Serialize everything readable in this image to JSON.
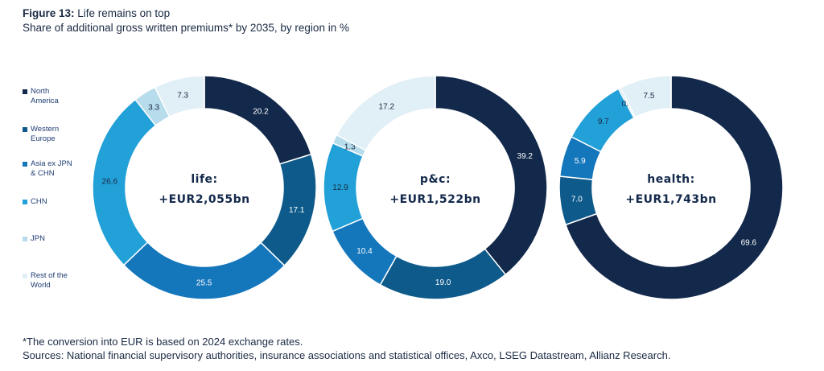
{
  "header": {
    "figure_label": "Figure 13:",
    "title": "Life remains on top",
    "subtitle": "Share of additional gross written premiums* by 2035, by region in %"
  },
  "colors": {
    "North America": "#13294b",
    "Western Europe": "#0e5a8a",
    "Asia ex JPN & CHN": "#1476bb",
    "CHN": "#22a0d8",
    "JPN": "#b7dceb",
    "Rest of the World": "#e1eff6"
  },
  "legend": [
    {
      "label": "North\nAmerica",
      "key": "North America"
    },
    {
      "label": "Western\nEurope",
      "key": "Western Europe"
    },
    {
      "label": "Asia ex JPN\n& CHN",
      "key": "Asia ex JPN & CHN"
    },
    {
      "label": "CHN",
      "key": "CHN"
    },
    {
      "label": "JPN",
      "key": "JPN"
    },
    {
      "label": "Rest of the\nWorld",
      "key": "Rest of the World"
    }
  ],
  "chart_data": [
    {
      "type": "pie",
      "subtype": "donut",
      "center_label": "life:",
      "center_value": "+EUR2,055bn",
      "categories": [
        "North America",
        "Western Europe",
        "Asia ex JPN & CHN",
        "CHN",
        "JPN",
        "Rest of the World"
      ],
      "values": [
        20.2,
        17.1,
        25.5,
        26.6,
        3.3,
        7.3
      ],
      "labels": [
        "20.2",
        "17.1",
        "25.5",
        "26.6",
        "3.3",
        "7.3"
      ]
    },
    {
      "type": "pie",
      "subtype": "donut",
      "center_label": "p&c:",
      "center_value": "+EUR1,522bn",
      "categories": [
        "North America",
        "Western Europe",
        "Asia ex JPN & CHN",
        "CHN",
        "JPN",
        "Rest of the World"
      ],
      "values": [
        39.2,
        19.0,
        10.4,
        12.9,
        1.3,
        17.2
      ],
      "labels": [
        "39.2",
        "19.0",
        "10.4",
        "12.9",
        "1.3",
        "17.2"
      ]
    },
    {
      "type": "pie",
      "subtype": "donut",
      "center_label": "health:",
      "center_value": "+EUR1,743bn",
      "categories": [
        "North America",
        "Western Europe",
        "Asia ex JPN & CHN",
        "CHN",
        "JPN",
        "Rest of the World"
      ],
      "values": [
        69.6,
        7.0,
        5.9,
        9.7,
        0.3,
        7.5
      ],
      "labels": [
        "69.6",
        "7.0",
        "5.9",
        "9.7",
        "0.3",
        "7.5"
      ]
    }
  ],
  "footnotes": {
    "note": "*The conversion into EUR is based on 2024 exchange rates.",
    "sources": "Sources: National financial supervisory authorities, insurance associations and statistical offices, Axco, LSEG Datastream, Allianz Research."
  }
}
